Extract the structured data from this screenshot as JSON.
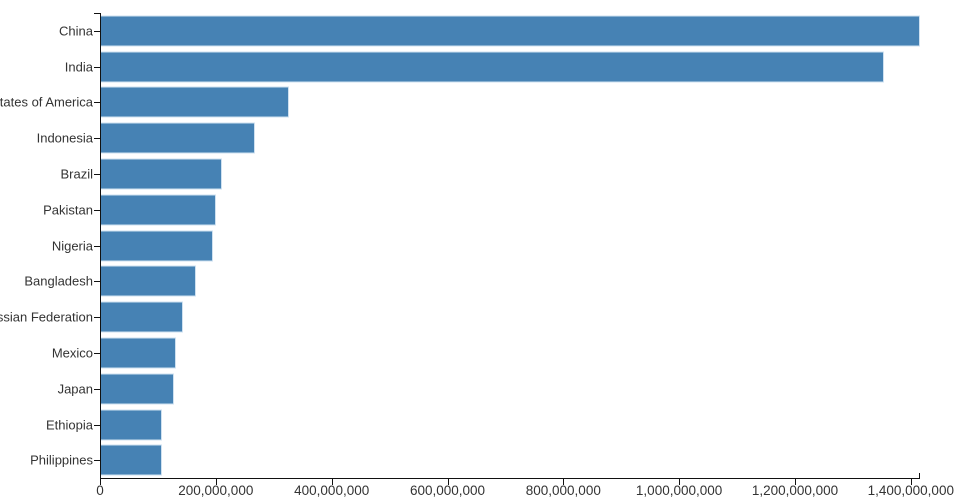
{
  "chart_data": {
    "type": "bar",
    "orientation": "horizontal",
    "title": "",
    "xlabel": "",
    "ylabel": "",
    "categories": [
      "China",
      "India",
      "United States of America",
      "Indonesia",
      "Brazil",
      "Pakistan",
      "Nigeria",
      "Bangladesh",
      "Russian Federation",
      "Mexico",
      "Japan",
      "Ethiopia",
      "Philippines"
    ],
    "values": [
      1415045928,
      1354051854,
      326766748,
      266794980,
      210867954,
      200813818,
      195875237,
      166368149,
      143964709,
      130759074,
      127185332,
      107534882,
      106512074
    ],
    "xlim": [
      0,
      1415045928
    ],
    "grid": false,
    "legend": false,
    "x_ticks": [
      {
        "value": 0,
        "label": "0"
      },
      {
        "value": 200000000,
        "label": "200,000,000"
      },
      {
        "value": 400000000,
        "label": "400,000,000"
      },
      {
        "value": 600000000,
        "label": "600,000,000"
      },
      {
        "value": 800000000,
        "label": "800,000,000"
      },
      {
        "value": 1000000000,
        "label": "1,000,000,000"
      },
      {
        "value": 1200000000,
        "label": "1,200,000,000"
      },
      {
        "value": 1400000000,
        "label": "1,400,000,000"
      }
    ],
    "colors": {
      "bar_fill": "#4682b4",
      "bar_stroke": "#cfe1f0",
      "axis": "#111111",
      "label_text": "#333333",
      "background": "#ffffff"
    }
  }
}
